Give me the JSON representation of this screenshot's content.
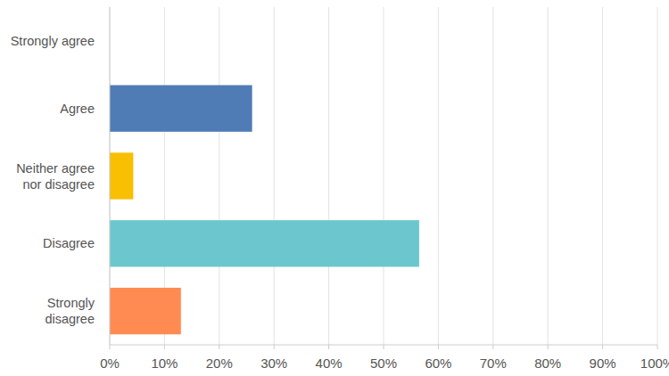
{
  "chart_data": {
    "type": "bar",
    "orientation": "horizontal",
    "categories": [
      "Strongly agree",
      "Agree",
      "Neither agree nor disagree",
      "Disagree",
      "Strongly disagree"
    ],
    "values": [
      0,
      26,
      4.3,
      56.5,
      13
    ],
    "colors": [
      "#8bbf5a",
      "#507cb6",
      "#f8bf03",
      "#6bc7cd",
      "#ff8b53"
    ],
    "xlim": [
      0,
      100
    ],
    "xticks": [
      {
        "value": 0,
        "label": "0%"
      },
      {
        "value": 10,
        "label": "10%"
      },
      {
        "value": 20,
        "label": "20%"
      },
      {
        "value": 30,
        "label": "30%"
      },
      {
        "value": 40,
        "label": "40%"
      },
      {
        "value": 50,
        "label": "50%"
      },
      {
        "value": 60,
        "label": "60%"
      },
      {
        "value": 70,
        "label": "70%"
      },
      {
        "value": 80,
        "label": "80%"
      },
      {
        "value": 90,
        "label": "90%"
      },
      {
        "value": 100,
        "label": "100%"
      }
    ],
    "grid": true
  }
}
